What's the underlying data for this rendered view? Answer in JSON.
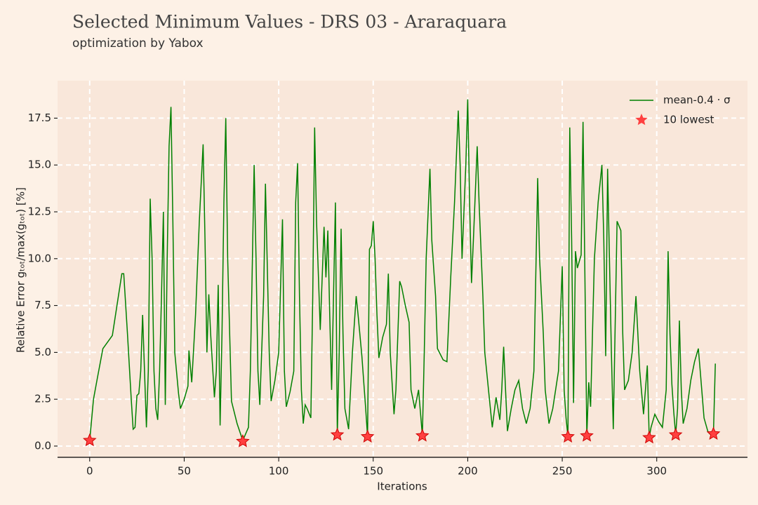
{
  "chart_data": {
    "type": "line",
    "title": "Selected Minimum Values - DRS 03 - Araraquara",
    "subtitle": "optimization by Yabox",
    "x_label": "Iterations",
    "y_label": "Relative Error gₜₒₜ/max(gₜₒₜ) [%]",
    "xlim": [
      -17,
      348
    ],
    "ylim": [
      -0.6,
      19.5
    ],
    "xticks": [
      0,
      50,
      100,
      150,
      200,
      250,
      300
    ],
    "yticks": [
      {
        "value": 0,
        "label": "0.0"
      },
      2.5,
      {
        "value": 5,
        "label": "5.0"
      },
      7.5,
      {
        "value": 10,
        "label": "10.0"
      },
      12.5,
      {
        "value": 15,
        "label": "15.0"
      },
      17.5
    ],
    "grid": true,
    "legend": "upper right",
    "series": [
      {
        "name": "mean-0.4 · σ",
        "type": "line",
        "color": "#008000",
        "x": [
          0,
          2,
          4,
          7,
          12,
          17,
          18,
          20,
          22,
          23,
          24,
          25,
          26,
          27,
          28,
          29,
          30,
          31,
          32,
          33,
          34,
          35,
          36,
          37,
          38,
          39,
          40,
          41,
          42,
          43,
          44,
          45,
          47,
          48,
          50,
          52,
          52.5,
          54,
          56,
          58,
          60,
          61,
          62,
          63,
          64,
          66,
          67,
          68,
          69,
          70,
          71,
          72,
          73,
          75,
          78,
          81,
          84,
          85,
          87,
          88,
          89,
          90,
          92,
          93,
          95,
          96,
          98,
          100,
          102,
          103,
          104,
          106,
          108,
          109,
          110,
          111,
          112,
          113,
          114,
          115,
          117,
          118,
          119,
          120,
          122,
          124,
          125,
          126,
          127,
          128,
          129,
          130,
          131,
          132,
          133,
          134,
          135,
          137,
          139,
          141,
          142,
          144,
          146,
          147,
          148,
          149,
          150,
          151,
          152,
          153,
          155,
          157,
          158,
          159,
          161,
          162,
          164,
          165,
          167,
          169,
          170,
          172,
          174,
          176,
          177,
          178,
          180,
          181,
          183,
          184,
          187,
          189,
          191,
          193,
          195,
          196,
          197,
          199,
          200,
          201,
          202,
          203,
          205,
          206,
          208,
          209,
          211,
          212,
          213,
          215,
          216,
          217,
          218,
          219,
          220,
          221,
          223,
          225,
          227,
          229,
          231,
          233,
          235,
          237,
          238,
          240,
          241,
          243,
          245,
          248,
          250,
          251,
          252,
          253,
          254,
          255,
          256,
          257,
          258,
          260,
          261,
          262,
          263,
          264,
          265,
          267,
          269,
          271,
          272,
          273,
          274,
          276,
          277,
          279,
          281,
          282,
          283,
          285,
          287,
          289,
          291,
          293,
          295,
          296,
          297,
          299,
          301,
          303,
          305,
          306,
          307,
          308,
          309,
          310,
          311,
          312,
          313,
          314,
          316,
          318,
          320,
          322,
          323,
          325,
          327,
          328,
          330,
          331
        ],
        "values": [
          0.3,
          2.5,
          3.6,
          5.2,
          5.9,
          9.2,
          9.2,
          6,
          2.5,
          0.9,
          1,
          2.7,
          2.8,
          4,
          7,
          4,
          1,
          4,
          13.2,
          10,
          4,
          2,
          1.4,
          4,
          8,
          12.5,
          2.2,
          10,
          16,
          18.1,
          12,
          5,
          2.8,
          2,
          2.5,
          3.2,
          5.1,
          3.4,
          7,
          12,
          16.1,
          11,
          5,
          8.1,
          6,
          2.6,
          4,
          8.6,
          1.1,
          6,
          13,
          17.5,
          10,
          2.4,
          1.2,
          0.3,
          1,
          4,
          15,
          10,
          4,
          2.2,
          8,
          14,
          5,
          2.4,
          3.5,
          5,
          12.1,
          4,
          2.1,
          2.9,
          4,
          13,
          15.1,
          8,
          3,
          1.2,
          2.2,
          2,
          1.5,
          8,
          17,
          12,
          6.2,
          11.7,
          9,
          11.5,
          7,
          3,
          8,
          13,
          0.6,
          5,
          11.6,
          6,
          2,
          0.9,
          5,
          8,
          7,
          4.8,
          2,
          0.5,
          10.5,
          10.7,
          12,
          10,
          7,
          4.7,
          5.8,
          6.5,
          9.2,
          5,
          1.7,
          3,
          8.8,
          8.5,
          7.5,
          6.6,
          3,
          2,
          3,
          0.55,
          5,
          10,
          14.8,
          11,
          8,
          5.2,
          4.6,
          4.5,
          9,
          13,
          17.9,
          15,
          10,
          15,
          18.5,
          13,
          8.7,
          11,
          16,
          13,
          8,
          5,
          3,
          2,
          1,
          2.6,
          2,
          1.4,
          3,
          5.3,
          3,
          0.8,
          2,
          3,
          3.5,
          2,
          1.2,
          2,
          4,
          14.3,
          10,
          6,
          3,
          1.2,
          2,
          4,
          9.6,
          3,
          1.5,
          0.5,
          17,
          11,
          2.3,
          10.4,
          9.5,
          10.2,
          17.3,
          9,
          0.55,
          3.4,
          2.1,
          10,
          13,
          15,
          11,
          4.8,
          14.8,
          5,
          0.9,
          12,
          11.5,
          6,
          3,
          3.5,
          5,
          8,
          4,
          1.7,
          4.3,
          0.45,
          1,
          1.7,
          1.3,
          1,
          3,
          10.4,
          6,
          3.3,
          1.8,
          0.6,
          2,
          6.7,
          3,
          1.2,
          2,
          3.5,
          4.5,
          5.2,
          4,
          1.5,
          0.8,
          0.65,
          0.65,
          4.4
        ]
      },
      {
        "name": "10 lowest",
        "type": "scatter",
        "color": "#ff4040",
        "x": [
          0,
          81,
          131,
          147,
          176,
          253,
          263,
          296,
          310,
          330
        ],
        "values": [
          0.3,
          0.25,
          0.6,
          0.5,
          0.55,
          0.5,
          0.55,
          0.45,
          0.6,
          0.65
        ]
      }
    ]
  }
}
